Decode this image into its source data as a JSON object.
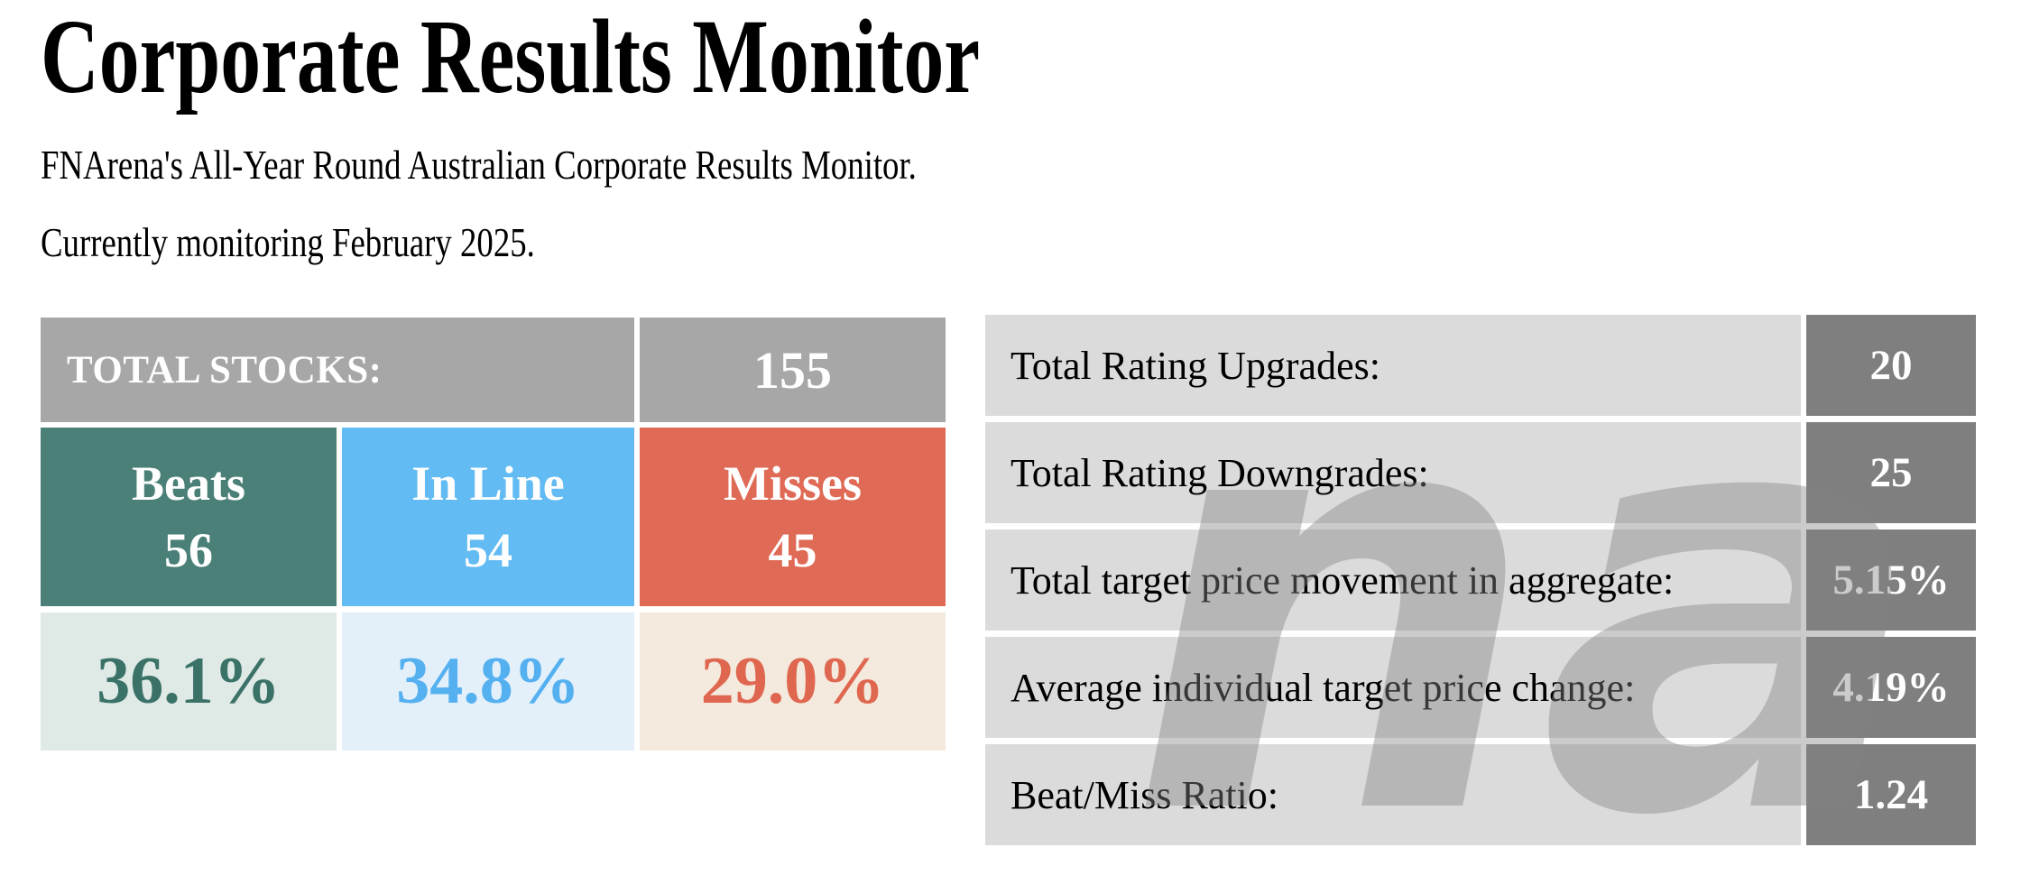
{
  "page": {
    "title": "Corporate Results Monitor",
    "intro_line1": "FNArena's All-Year Round Australian Corporate Results Monitor.",
    "intro_line2": "Currently monitoring February 2025."
  },
  "summary_table": {
    "total_stocks_label": "TOTAL STOCKS:",
    "total_stocks_value": "155",
    "categories": [
      {
        "label": "Beats",
        "count": "56",
        "percent": "36.1%"
      },
      {
        "label": "In Line",
        "count": "54",
        "percent": "34.8%"
      },
      {
        "label": "Misses",
        "count": "45",
        "percent": "29.0%"
      }
    ]
  },
  "stats_table": {
    "rows": [
      {
        "label": "Total Rating Upgrades:",
        "value": "20"
      },
      {
        "label": "Total Rating Downgrades:",
        "value": "25"
      },
      {
        "label": "Total target price movement in aggregate:",
        "value": "5.15%"
      },
      {
        "label": "Average individual target price change:",
        "value": "4.19%"
      },
      {
        "label": "Beat/Miss Ratio:",
        "value": "1.24"
      }
    ]
  },
  "watermark": {
    "text": "na"
  },
  "colors": {
    "header_gray": "#a8a7a7",
    "beats_teal": "#4a8077",
    "inline_blue": "#62bbf2",
    "misses_red": "#df6a55",
    "beats_pale": "#dfe9e5",
    "inline_pale": "#e3f0fa",
    "misses_pale": "#f4e9dd",
    "beats_text": "#3b7268",
    "inline_text": "#55b0f0",
    "misses_text": "#df674f",
    "label_gray": "#dbdbdb",
    "value_gray": "#7f7f7f"
  }
}
